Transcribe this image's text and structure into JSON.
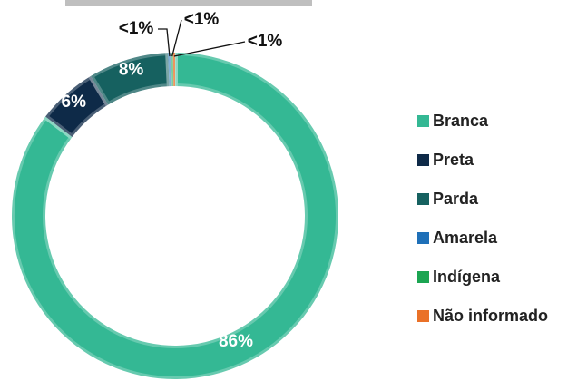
{
  "chart_data": {
    "type": "donut",
    "categories": [
      "Branca",
      "Preta",
      "Parda",
      "Amarela",
      "Indígena",
      "Não informado"
    ],
    "values": [
      86,
      6,
      8,
      0.3,
      0.2,
      0.2
    ],
    "value_labels": [
      "86%",
      "6%",
      "8%",
      "<1%",
      "<1%",
      "<1%"
    ],
    "colors": [
      "#34b894",
      "#0e2a48",
      "#166160",
      "#1f70b8",
      "#1ca552",
      "#ea7128"
    ],
    "legend": "right"
  }
}
